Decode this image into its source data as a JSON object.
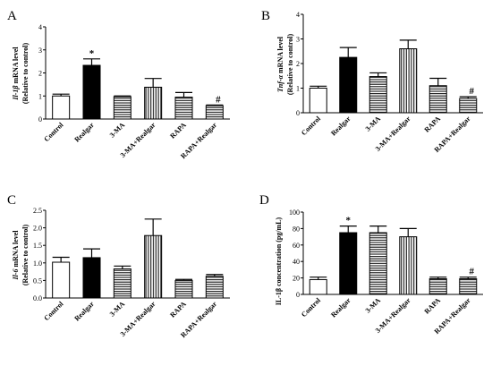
{
  "patterns": {
    "Control": "open",
    "Realgar": "solid",
    "3-MA": "hlines",
    "3-MA+Realgar": "vlines",
    "RAPA": "hlines",
    "RAPA+Realgar": "hlines"
  },
  "chart_data": [
    {
      "type": "bar",
      "panel": "A",
      "ylabel_gene": "Il-1β",
      "ylabel_rest": " mRNA level",
      "ylabel2": "(Relative to control)",
      "categories": [
        "Control",
        "Realgar",
        "3-MA",
        "3-MA+Realgar",
        "RAPA",
        "RAPA+Realgar"
      ],
      "values": [
        1.0,
        2.33,
        0.97,
        1.38,
        0.95,
        0.58
      ],
      "errors": [
        0.08,
        0.28,
        0.03,
        0.38,
        0.2,
        0.03
      ],
      "annotations": [
        "",
        "*",
        "",
        "",
        "",
        "#"
      ],
      "ylim": [
        0,
        4
      ],
      "yticks": [
        "0",
        "1",
        "2",
        "3",
        "4"
      ]
    },
    {
      "type": "bar",
      "panel": "B",
      "ylabel_gene": "Tnf-α",
      "ylabel_rest": " mRNA level",
      "ylabel2": "(Relative to control)",
      "categories": [
        "Control",
        "Realgar",
        "3-MA",
        "3-MA+Realgar",
        "RAPA",
        "RAPA+Realgar"
      ],
      "values": [
        1.0,
        2.25,
        1.47,
        2.6,
        1.1,
        0.58
      ],
      "errors": [
        0.08,
        0.4,
        0.15,
        0.35,
        0.3,
        0.07
      ],
      "annotations": [
        "",
        "",
        "",
        "",
        "",
        "#"
      ],
      "ylim": [
        0,
        4
      ],
      "yticks": [
        "0",
        "1",
        "2",
        "3",
        "4"
      ]
    },
    {
      "type": "bar",
      "panel": "C",
      "ylabel_gene": "Il-6",
      "ylabel_rest": " mRNA level",
      "ylabel2": "(Relative to control)",
      "categories": [
        "Control",
        "Realgar",
        "3-MA",
        "3-MA+Realgar",
        "RAPA",
        "RAPA+Realgar"
      ],
      "values": [
        1.02,
        1.15,
        0.83,
        1.78,
        0.5,
        0.62
      ],
      "errors": [
        0.14,
        0.25,
        0.08,
        0.47,
        0.03,
        0.05
      ],
      "annotations": [
        "",
        "",
        "",
        "",
        "",
        ""
      ],
      "ylim": [
        0,
        2.5
      ],
      "yticks": [
        "0.0",
        "0.5",
        "1.0",
        "1.5",
        "2.0",
        "2.5"
      ]
    },
    {
      "type": "bar",
      "panel": "D",
      "ylabel_gene": "",
      "ylabel_rest": "IL-1β concentration (pg/mL)",
      "ylabel2": "",
      "categories": [
        "Control",
        "Realgar",
        "3-MA",
        "3-MA+Realgar",
        "RAPA",
        "RAPA+Realgar"
      ],
      "values": [
        18,
        75,
        75,
        70,
        19,
        19
      ],
      "errors": [
        3,
        8,
        8,
        10,
        2,
        2
      ],
      "annotations": [
        "",
        "*",
        "",
        "",
        "",
        "#"
      ],
      "ylim": [
        0,
        100
      ],
      "yticks": [
        "0",
        "20",
        "40",
        "60",
        "80",
        "100"
      ]
    }
  ]
}
